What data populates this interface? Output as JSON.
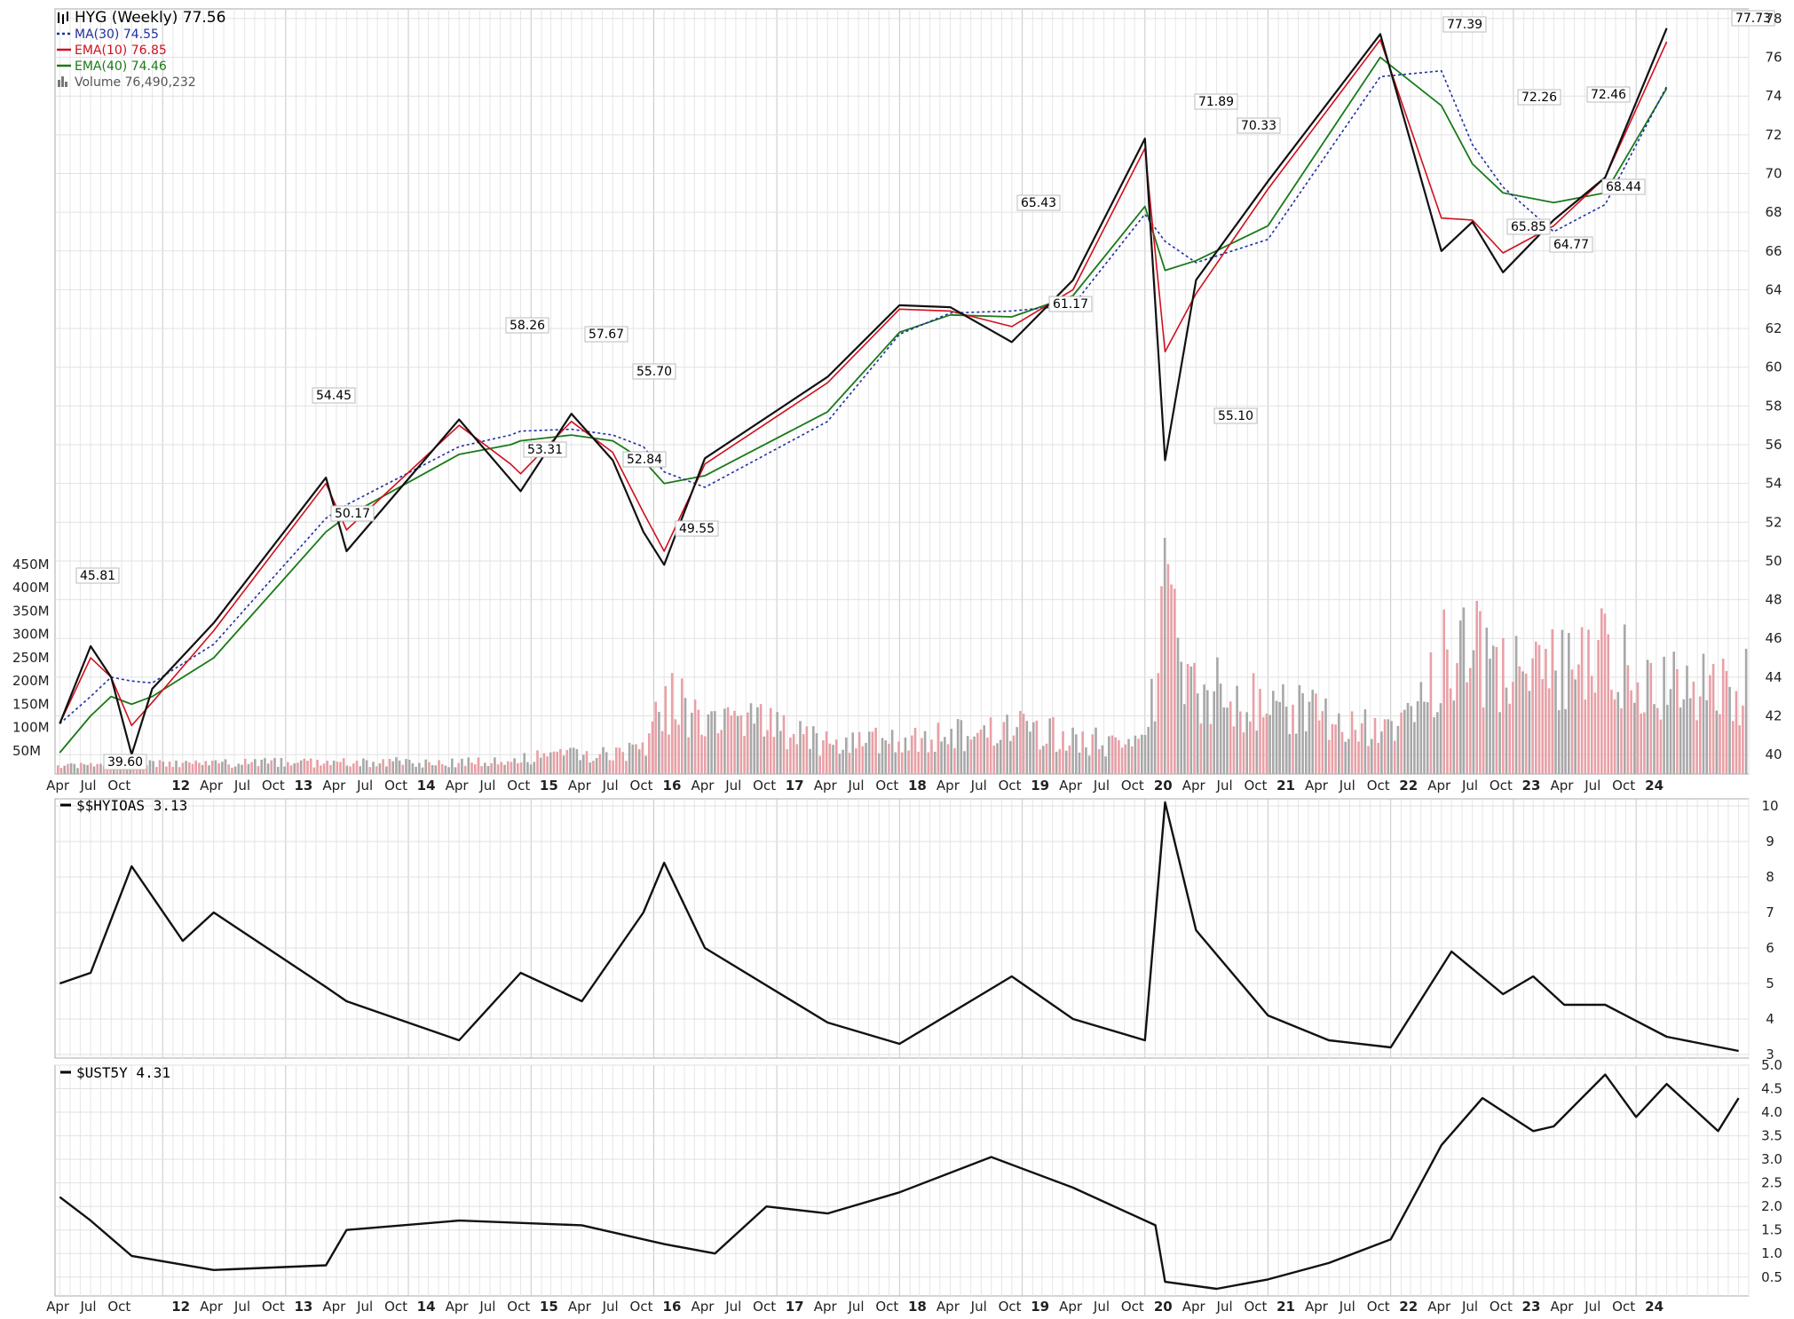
{
  "panels": {
    "price": {
      "legend": [
        {
          "label": "HYG (Weekly) 77.56",
          "color": "#000000",
          "style": "ohlc"
        },
        {
          "label": "MA(30) 74.55",
          "color": "#1f2fa0",
          "style": "dotted"
        },
        {
          "label": "EMA(10) 76.85",
          "color": "#d0101e",
          "style": "solid"
        },
        {
          "label": "EMA(40) 74.46",
          "color": "#1a7a1a",
          "style": "solid"
        },
        {
          "label": "Volume 76,490,232",
          "color": "#555555",
          "style": "bars"
        }
      ],
      "y_ticks": [
        "78",
        "76",
        "74",
        "72",
        "70",
        "68",
        "66",
        "64",
        "62",
        "60",
        "58",
        "56",
        "54",
        "52",
        "50",
        "48",
        "46",
        "44",
        "42",
        "40"
      ],
      "vol_ticks": [
        "450M",
        "400M",
        "350M",
        "300M",
        "250M",
        "200M",
        "150M",
        "100M",
        "50M"
      ]
    },
    "hyioas": {
      "legend": "$$HYIOAS 3.13",
      "y_ticks": [
        "10",
        "9",
        "8",
        "7",
        "6",
        "5",
        "4",
        "3"
      ]
    },
    "ust5y": {
      "legend": "$UST5Y 4.31",
      "y_ticks": [
        "5.0",
        "4.5",
        "4.0",
        "3.5",
        "3.0",
        "2.5",
        "2.0",
        "1.5",
        "1.0",
        "0.5"
      ]
    }
  },
  "x_axis_labels": [
    "Apr",
    "Jul",
    "Oct",
    "12",
    "Apr",
    "Jul",
    "Oct",
    "13",
    "Apr",
    "Jul",
    "Oct",
    "14",
    "Apr",
    "Jul",
    "Oct",
    "15",
    "Apr",
    "Jul",
    "Oct",
    "16",
    "Apr",
    "Jul",
    "Oct",
    "17",
    "Apr",
    "Jul",
    "Oct",
    "18",
    "Apr",
    "Jul",
    "Oct",
    "19",
    "Apr",
    "Jul",
    "Oct",
    "20",
    "Apr",
    "Jul",
    "Oct",
    "21",
    "Apr",
    "Jul",
    "Oct",
    "22",
    "Apr",
    "Jul",
    "Oct",
    "23",
    "Apr",
    "Jul",
    "Oct",
    "24"
  ],
  "chart_data": [
    {
      "type": "line",
      "title": "HYG (Weekly) 77.56",
      "x": [
        "2011-03",
        "2011-06",
        "2011-08",
        "2011-10",
        "2011-12",
        "2012-06",
        "2013-05",
        "2013-07",
        "2014-06",
        "2014-11",
        "2014-12",
        "2015-05",
        "2015-09",
        "2015-12",
        "2016-02",
        "2016-06",
        "2017-06",
        "2018-01",
        "2018-06",
        "2018-12",
        "2019-06",
        "2020-01",
        "2020-03",
        "2020-06",
        "2021-01",
        "2021-12",
        "2022-06",
        "2022-09",
        "2022-12",
        "2023-05",
        "2023-10",
        "2024-04"
      ],
      "series": [
        {
          "name": "HYG (Weekly) 77.56",
          "values": [
            41.6,
            45.6,
            44,
            40,
            43.4,
            46.8,
            54.3,
            50.5,
            57.3,
            54.2,
            53.6,
            57.6,
            55.2,
            51.5,
            49.8,
            55.3,
            59.5,
            63.2,
            63.1,
            61.3,
            64.5,
            71.8,
            55.2,
            64.5,
            69.6,
            77.2,
            66,
            67.5,
            64.9,
            67.6,
            69.8,
            77.5
          ]
        },
        {
          "name": "MA(30) 74.55",
          "values": [
            41.6,
            43,
            44,
            43.8,
            43.7,
            45.7,
            52.2,
            52.9,
            55.9,
            56.5,
            56.7,
            56.8,
            56.5,
            55.9,
            54.6,
            53.8,
            57.2,
            61.7,
            62.8,
            62.9,
            63.2,
            67.9,
            66.5,
            65.4,
            66.6,
            75,
            75.3,
            71.5,
            69.3,
            67,
            68.4,
            74.5
          ]
        },
        {
          "name": "EMA(10) 76.85",
          "values": [
            41.6,
            45,
            44,
            41.5,
            42.7,
            46.4,
            54,
            51.6,
            57,
            55,
            54.5,
            57.2,
            55.6,
            52.5,
            50.5,
            55,
            59.2,
            63,
            62.9,
            62.1,
            64,
            71.3,
            60.8,
            63.8,
            69.2,
            76.9,
            67.7,
            67.6,
            65.9,
            67.3,
            69.8,
            76.8
          ]
        },
        {
          "name": "EMA(40) 74.46",
          "values": [
            40.1,
            42,
            43,
            42.6,
            43,
            45,
            51.5,
            52.3,
            55.5,
            56,
            56.2,
            56.5,
            56.2,
            55.2,
            54,
            54.4,
            57.7,
            61.8,
            62.7,
            62.6,
            63.7,
            68.3,
            65,
            65.5,
            67.3,
            76,
            73.5,
            70.5,
            69,
            68.5,
            69,
            74.4
          ]
        }
      ],
      "annotations": [
        "45.81",
        "39.60",
        "54.45",
        "50.17",
        "58.26",
        "53.31",
        "57.67",
        "55.70",
        "52.84",
        "49.55",
        "65.43",
        "61.17",
        "71.89",
        "55.10",
        "70.33",
        "77.39",
        "72.26",
        "65.85",
        "64.77",
        "72.46",
        "68.44",
        "77.73"
      ],
      "ylim": [
        39,
        78.5
      ],
      "xlim": [
        "2011-03",
        "2024-12"
      ],
      "grid": true,
      "legend_position": "top-left"
    },
    {
      "type": "bar",
      "title": "Volume 76,490,232",
      "x": [
        "2011-03",
        "2012-06",
        "2014-06",
        "2015-12",
        "2016-02",
        "2017-06",
        "2018-06",
        "2018-12",
        "2019-06",
        "2020-01",
        "2020-03",
        "2020-06",
        "2021-01",
        "2022-01",
        "2022-06",
        "2022-09",
        "2023-03",
        "2023-10",
        "2024-04"
      ],
      "values": [
        20,
        30,
        30,
        60,
        190,
        80,
        95,
        130,
        90,
        70,
        460,
        230,
        180,
        100,
        300,
        320,
        260,
        300,
        230
      ],
      "ylabel_ticks": [
        "450M",
        "400M",
        "350M",
        "300M",
        "250M",
        "200M",
        "150M",
        "100M",
        "50M"
      ],
      "ylim": [
        0,
        480
      ],
      "grid": true
    },
    {
      "type": "line",
      "title": "$$HYIOAS 3.13",
      "x": [
        "2011-03",
        "2011-06",
        "2011-10",
        "2012-03",
        "2012-06",
        "2013-05",
        "2013-07",
        "2014-06",
        "2014-12",
        "2015-06",
        "2015-12",
        "2016-02",
        "2016-06",
        "2017-06",
        "2018-01",
        "2018-12",
        "2019-06",
        "2020-01",
        "2020-03",
        "2020-06",
        "2021-01",
        "2021-07",
        "2022-01",
        "2022-07",
        "2022-12",
        "2023-03",
        "2023-06",
        "2023-10",
        "2024-04",
        "2024-11"
      ],
      "series": [
        {
          "name": "$$HYIOAS 3.13",
          "values": [
            5,
            5.3,
            8.3,
            6.2,
            7,
            4.9,
            4.5,
            3.4,
            5.3,
            4.5,
            7,
            8.4,
            6,
            3.9,
            3.3,
            5.2,
            4,
            3.4,
            10.1,
            6.5,
            4.1,
            3.4,
            3.2,
            5.9,
            4.7,
            5.2,
            4.4,
            4.4,
            3.5,
            3.1
          ]
        }
      ],
      "ylim": [
        2.9,
        10.2
      ],
      "grid": true,
      "legend_position": "top-left"
    },
    {
      "type": "line",
      "title": "$UST5Y 4.31",
      "x": [
        "2011-03",
        "2011-06",
        "2011-10",
        "2012-06",
        "2013-05",
        "2013-07",
        "2014-06",
        "2015-06",
        "2016-02",
        "2016-07",
        "2016-12",
        "2017-06",
        "2018-01",
        "2018-10",
        "2019-06",
        "2020-02",
        "2020-03",
        "2020-08",
        "2021-01",
        "2021-07",
        "2022-01",
        "2022-06",
        "2022-10",
        "2023-03",
        "2023-05",
        "2023-10",
        "2024-01",
        "2024-04",
        "2024-09",
        "2024-11"
      ],
      "series": [
        {
          "name": "$UST5Y 4.31",
          "values": [
            2.2,
            1.7,
            0.95,
            0.65,
            0.75,
            1.5,
            1.7,
            1.6,
            1.2,
            1.0,
            2.0,
            1.85,
            2.3,
            3.05,
            2.4,
            1.6,
            0.4,
            0.25,
            0.45,
            0.8,
            1.3,
            3.3,
            4.3,
            3.6,
            3.7,
            4.8,
            3.9,
            4.6,
            3.6,
            4.3
          ]
        }
      ],
      "ylim": [
        0.1,
        5.0
      ],
      "grid": true,
      "legend_position": "top-left"
    }
  ]
}
